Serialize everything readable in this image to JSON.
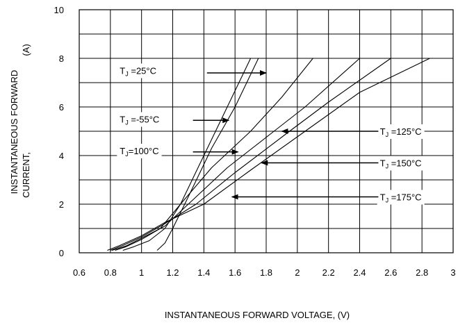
{
  "chart_data": {
    "type": "line",
    "xlabel": "INSTANTANEOUS FORWARD VOLTAGE, (V)",
    "ylabel_line1": "INSTANTANEOUS FORWARD",
    "ylabel_line2": "CURRENT,",
    "ylabel_unit": "(A)",
    "xlim": [
      0.6,
      3.0
    ],
    "ylim": [
      0,
      10
    ],
    "x_ticks": [
      "0.6",
      "0.8",
      "1",
      "1.2",
      "1.4",
      "1.6",
      "1.8",
      "2",
      "2.2",
      "2.4",
      "2.6",
      "2.8",
      "3"
    ],
    "y_ticks": [
      "0",
      "2",
      "4",
      "6",
      "8",
      "10"
    ],
    "grid": true,
    "series": [
      {
        "name": "T<sub>J</sub> =25°C",
        "color": "#000000",
        "points": [
          [
            0.88,
            0.1
          ],
          [
            0.95,
            0.25
          ],
          [
            1.05,
            0.5
          ],
          [
            1.15,
            1.0
          ],
          [
            1.25,
            2.0
          ],
          [
            1.4,
            4.0
          ],
          [
            1.55,
            6.0
          ],
          [
            1.7,
            8.0
          ]
        ]
      },
      {
        "name": "T<sub>J</sub> =-55°C",
        "color": "#000000",
        "points": [
          [
            1.1,
            0.1
          ],
          [
            1.15,
            0.4
          ],
          [
            1.2,
            1.0
          ],
          [
            1.3,
            2.3
          ],
          [
            1.45,
            4.3
          ],
          [
            1.6,
            6.0
          ],
          [
            1.75,
            8.0
          ]
        ]
      },
      {
        "name": "T<sub>J</sub>=100°C",
        "color": "#000000",
        "points": [
          [
            0.83,
            0.1
          ],
          [
            0.9,
            0.25
          ],
          [
            1.0,
            0.55
          ],
          [
            1.12,
            1.0
          ],
          [
            1.25,
            2.0
          ],
          [
            1.45,
            3.5
          ],
          [
            1.7,
            5.0
          ],
          [
            1.9,
            6.4
          ],
          [
            2.1,
            8.0
          ]
        ]
      },
      {
        "name": "T<sub>J</sub> =125°C",
        "color": "#000000",
        "points": [
          [
            0.81,
            0.1
          ],
          [
            0.9,
            0.28
          ],
          [
            1.0,
            0.6
          ],
          [
            1.15,
            1.1
          ],
          [
            1.3,
            2.0
          ],
          [
            1.55,
            3.5
          ],
          [
            1.85,
            5.0
          ],
          [
            2.05,
            6.0
          ],
          [
            2.4,
            8.0
          ]
        ]
      },
      {
        "name": "T<sub>J</sub> =150°C",
        "color": "#000000",
        "points": [
          [
            0.8,
            0.1
          ],
          [
            0.88,
            0.3
          ],
          [
            1.0,
            0.65
          ],
          [
            1.15,
            1.2
          ],
          [
            1.35,
            2.0
          ],
          [
            1.6,
            3.3
          ],
          [
            1.95,
            5.0
          ],
          [
            2.2,
            6.2
          ],
          [
            2.6,
            8.0
          ]
        ]
      },
      {
        "name": "T<sub>J</sub> =175°C",
        "color": "#000000",
        "points": [
          [
            0.78,
            0.1
          ],
          [
            0.86,
            0.3
          ],
          [
            1.0,
            0.7
          ],
          [
            1.15,
            1.25
          ],
          [
            1.4,
            2.0
          ],
          [
            1.7,
            3.4
          ],
          [
            2.05,
            5.0
          ],
          [
            2.4,
            6.6
          ],
          [
            2.85,
            8.0
          ]
        ]
      }
    ],
    "annotations": [
      {
        "label": "TJ =25°C",
        "sub": "J",
        "pre": "T",
        "post": " =25°C",
        "text_at": [
          0.86,
          7.5
        ],
        "arrow_from": [
          1.42,
          7.4
        ],
        "arrow_to": [
          1.8,
          7.4
        ]
      },
      {
        "label": "TJ =-55°C",
        "sub": "J",
        "pre": "T",
        "post": " =-55°C",
        "text_at": [
          0.86,
          5.5
        ],
        "arrow_from": [
          1.33,
          5.45
        ],
        "arrow_to": [
          1.56,
          5.45
        ]
      },
      {
        "label": "TJ=100°C",
        "sub": "J",
        "pre": "T",
        "post": "=100°C",
        "text_at": [
          0.86,
          4.2
        ],
        "arrow_from": [
          1.33,
          4.15
        ],
        "arrow_to": [
          1.62,
          4.15
        ]
      },
      {
        "label": "TJ =125°C",
        "sub": "J",
        "pre": "T",
        "post": " =125°C",
        "text_at": [
          2.53,
          5.0
        ],
        "arrow_from": [
          2.52,
          5.0
        ],
        "arrow_to": [
          1.9,
          5.0
        ]
      },
      {
        "label": "TJ =150°C",
        "sub": "J",
        "pre": "T",
        "post": " =150°C",
        "text_at": [
          2.53,
          3.7
        ],
        "arrow_from": [
          2.52,
          3.7
        ],
        "arrow_to": [
          1.77,
          3.7
        ]
      },
      {
        "label": "TJ =175°C",
        "sub": "J",
        "pre": "T",
        "post": " =175°C",
        "text_at": [
          2.53,
          2.3
        ],
        "arrow_from": [
          2.52,
          2.3
        ],
        "arrow_to": [
          1.58,
          2.3
        ]
      }
    ]
  }
}
